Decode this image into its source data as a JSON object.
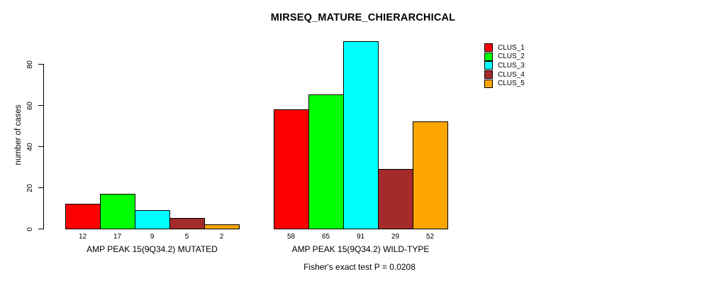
{
  "caption": "Fisher's exact test P = 0.0208",
  "chart_data": {
    "type": "bar",
    "title": "MIRSEQ_MATURE_CHIERARCHICAL",
    "xlabel": "",
    "ylabel": "number of cases",
    "ylim": [
      0,
      91
    ],
    "yticks": [
      0,
      20,
      40,
      60,
      80
    ],
    "grid": false,
    "legend_position": "right",
    "bar_borders": "#000000",
    "categories": [
      "AMP PEAK 15(9Q34.2) MUTATED",
      "AMP PEAK 15(9Q34.2) WILD-TYPE"
    ],
    "series": [
      {
        "name": "CLUS_1",
        "color": "#FF0000",
        "values": [
          12,
          58
        ]
      },
      {
        "name": "CLUS_2",
        "color": "#00FF00",
        "values": [
          17,
          65
        ]
      },
      {
        "name": "CLUS_3",
        "color": "#00FFFF",
        "values": [
          9,
          91
        ]
      },
      {
        "name": "CLUS_4",
        "color": "#A52A2A",
        "values": [
          5,
          29
        ]
      },
      {
        "name": "CLUS_5",
        "color": "#FFA500",
        "values": [
          2,
          52
        ]
      }
    ],
    "annotation": "Fisher's exact test P = 0.0208"
  }
}
